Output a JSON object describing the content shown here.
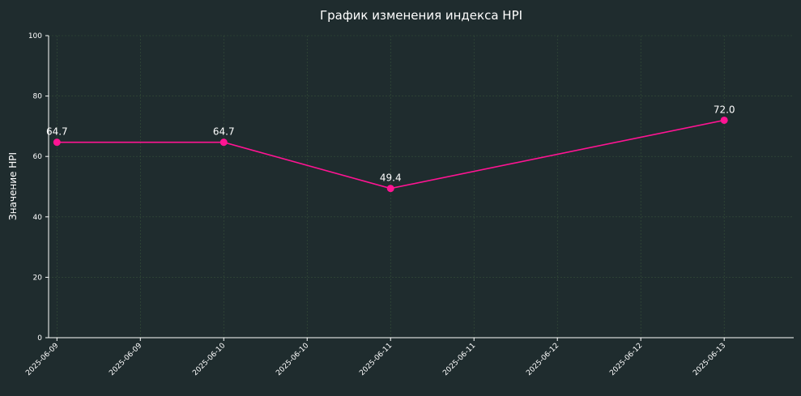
{
  "chart_data": {
    "type": "line",
    "title": "График изменения индекса HPI",
    "xlabel": "",
    "ylabel": "Значение HPI",
    "ylim": [
      0,
      100
    ],
    "yticks": [
      0,
      20,
      40,
      60,
      80,
      100
    ],
    "xlim": [
      "2025-06-08 22:48",
      "2025-06-13 10:00"
    ],
    "xtick_values": [
      "2025-06-09 00:00",
      "2025-06-09 12:00",
      "2025-06-10 00:00",
      "2025-06-10 12:00",
      "2025-06-11 00:00",
      "2025-06-11 12:00",
      "2025-06-12 00:00",
      "2025-06-12 12:00",
      "2025-06-13 00:00"
    ],
    "xtick_labels": [
      "2025-06-09",
      "2025-06-09",
      "2025-06-10",
      "2025-06-10",
      "2025-06-11",
      "2025-06-11",
      "2025-06-12",
      "2025-06-12",
      "2025-06-13"
    ],
    "grid": true,
    "series": [
      {
        "color": "#ff1493",
        "x": [
          "2025-06-09 00:00",
          "2025-06-10 00:00",
          "2025-06-11 00:00",
          "2025-06-13 00:00"
        ],
        "values": [
          64.7,
          64.7,
          49.4,
          72.0
        ],
        "labels": [
          "64.7",
          "64.7",
          "49.4",
          "72.0"
        ]
      }
    ]
  }
}
